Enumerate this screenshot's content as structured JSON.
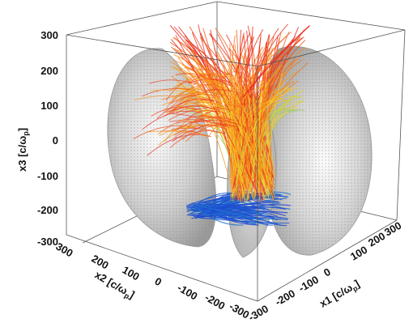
{
  "chart_data": {
    "type": "3d-streamline-visualization",
    "axes": {
      "x1": {
        "label": "x1 [c/ω",
        "label_sub": "p",
        "label_end": "]",
        "ticks": [
          "-300",
          "-200",
          "-100",
          "0",
          "100",
          "200",
          "300"
        ],
        "range": [
          -300,
          300
        ]
      },
      "x2": {
        "label": "x2 [c/ω",
        "label_sub": "p",
        "label_end": "]",
        "ticks": [
          "300",
          "200",
          "100",
          "0",
          "-100",
          "-200",
          "-300"
        ],
        "range": [
          -300,
          300
        ]
      },
      "x3": {
        "label": "x3 [c/ω",
        "label_sub": "p",
        "label_end": "]",
        "ticks": [
          "300",
          "200",
          "100",
          "0",
          "-100",
          "-200",
          "-300"
        ],
        "range": [
          -300,
          300
        ]
      }
    },
    "colors": {
      "surface": "#c8c8c8",
      "lines_low": "#1a2cd6",
      "lines_mid": "#28c8c0",
      "lines_high": "#ffd21e",
      "lines_top": "#e8281e"
    },
    "grid": false,
    "legend": "none"
  }
}
